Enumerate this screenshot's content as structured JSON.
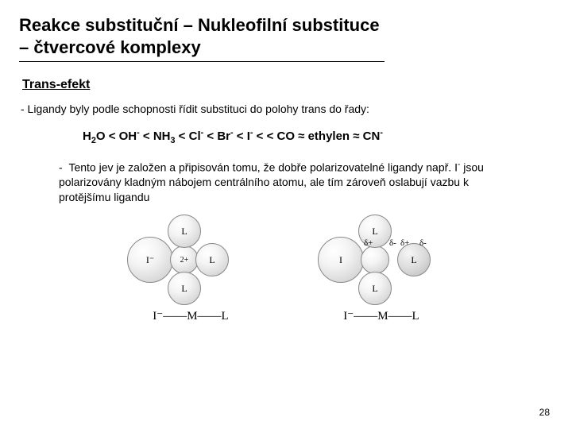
{
  "title": "Reakce substituční – Nukleofilní substituce – čtvercové komplexy",
  "subheading": "Trans-efekt",
  "intro_text": "- Ligandy byly podle schopnosti řídit substituci do polohy trans do řady:",
  "series_html": "H<sub>2</sub>O < OH<sup>-</sup> < NH<sub>3</sub> < Cl<sup>-</sup> < Br<sup>-</sup> < I<sup>-</sup> < < CO ≈ ethylen ≈ CN<sup>-</sup>",
  "explain_html": "- &nbsp;Tento jev je založen a připisován tomu, že dobře polarizovatelné ligandy např. I<sup>-</sup> jsou polarizovány kladným nábojem centrálního atomu, ale tím zároveň oslabují vazbu k protějšímu ligandu",
  "diagram": {
    "leftover_caption": "I⁻——M——L",
    "right_caption": "I⁻——M——L",
    "sphere_colors": {
      "fill_gradient_start": "#ffffff",
      "fill_gradient_mid": "#f0f0f0",
      "fill_gradient_end": "#c7c7c7",
      "border": "#888888"
    },
    "left": {
      "iodide_label": "I⁻",
      "center_label": "2+",
      "top_label": "L",
      "right_label": "L",
      "bottom_label": "L"
    },
    "right": {
      "iodide_label": "I",
      "center_label": "",
      "top_label": "L",
      "right_label": "L",
      "bottom_label": "L",
      "delta_plus": "δ+",
      "delta_minus": "δ-",
      "delta_plus2": "δ+",
      "delta_minus2": "δ-"
    }
  },
  "page_number": "28"
}
